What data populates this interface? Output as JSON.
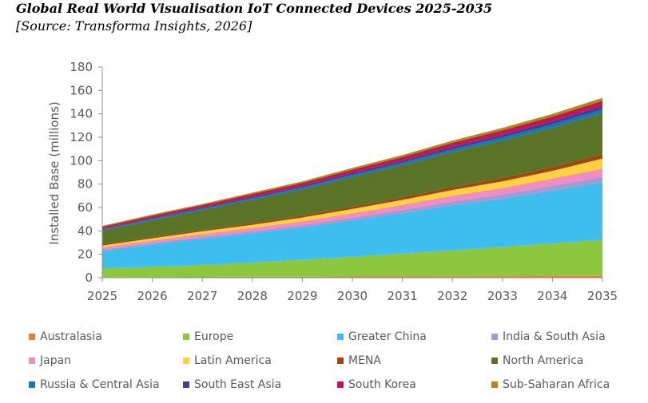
{
  "chart_data": {
    "type": "area",
    "stacked": true,
    "title": "Global Real World Visualisation IoT Connected Devices 2025-2035",
    "subtitle": "[Source: Transforma Insights, 2026]",
    "xlabel": "",
    "ylabel": "Installed Base (millions)",
    "ylim": [
      0,
      180
    ],
    "yticks": [
      "0",
      "20",
      "40",
      "60",
      "80",
      "100",
      "120",
      "140",
      "160",
      "180"
    ],
    "ytick_values": [
      0,
      20,
      40,
      60,
      80,
      100,
      120,
      140,
      160,
      180
    ],
    "x": [
      "2025",
      "2026",
      "2027",
      "2028",
      "2029",
      "2030",
      "2031",
      "2032",
      "2033",
      "2034",
      "2035"
    ],
    "legend_position": "bottom",
    "series": [
      {
        "name": "Australasia",
        "color": "#ed7d31",
        "values": [
          0.5,
          0.6,
          0.7,
          0.8,
          0.9,
          1.0,
          1.1,
          1.2,
          1.3,
          1.4,
          1.5
        ]
      },
      {
        "name": "Europe",
        "color": "#8dc63f",
        "values": [
          7.5,
          8.9,
          10.3,
          12.2,
          14.6,
          17.0,
          19.6,
          22.3,
          25.2,
          28.1,
          31.0
        ]
      },
      {
        "name": "Greater China",
        "color": "#3dbeee",
        "values": [
          15,
          19,
          22.5,
          25,
          27.5,
          31,
          34.5,
          38.5,
          41,
          45,
          49
        ]
      },
      {
        "name": "India & South Asia",
        "color": "#9d9cd6",
        "values": [
          1.0,
          1.2,
          1.4,
          1.7,
          2.0,
          2.3,
          2.7,
          3.1,
          3.6,
          4.1,
          4.7
        ]
      },
      {
        "name": "Japan",
        "color": "#f18dc2",
        "values": [
          2.0,
          2.2,
          2.5,
          2.9,
          3.3,
          3.8,
          4.4,
          5.0,
          5.6,
          6.2,
          7.0
        ]
      },
      {
        "name": "Latin America",
        "color": "#ffd13f",
        "values": [
          1.5,
          1.8,
          2.2,
          2.6,
          3.1,
          3.6,
          4.2,
          4.8,
          5.6,
          6.5,
          8.5
        ]
      },
      {
        "name": "MENA",
        "color": "#9e480e",
        "values": [
          1.0,
          1.1,
          1.3,
          1.5,
          1.7,
          2.0,
          2.3,
          2.6,
          3.0,
          3.4,
          4.0
        ]
      },
      {
        "name": "North America",
        "color": "#5a7326",
        "values": [
          12,
          14.5,
          17,
          20,
          22.5,
          25.5,
          27.5,
          30,
          32,
          33.5,
          35
        ]
      },
      {
        "name": "Russia & Central Asia",
        "color": "#0f7ab5",
        "values": [
          0.8,
          1.0,
          1.1,
          1.3,
          1.5,
          1.7,
          1.9,
          2.2,
          2.5,
          2.8,
          3.1
        ]
      },
      {
        "name": "South East Asia",
        "color": "#433f8f",
        "values": [
          0.8,
          1.0,
          1.1,
          1.3,
          1.5,
          1.7,
          1.9,
          2.2,
          2.5,
          2.8,
          3.1
        ]
      },
      {
        "name": "South Korea",
        "color": "#c0155b",
        "values": [
          1.4,
          1.7,
          1.9,
          2.2,
          2.4,
          2.7,
          3.0,
          3.3,
          3.6,
          3.9,
          4.2
        ]
      },
      {
        "name": "Sub-Saharan Africa",
        "color": "#b8860b",
        "values": [
          0.8,
          0.9,
          1.0,
          1.2,
          1.3,
          1.5,
          1.7,
          1.9,
          2.1,
          2.3,
          2.6
        ]
      }
    ]
  }
}
